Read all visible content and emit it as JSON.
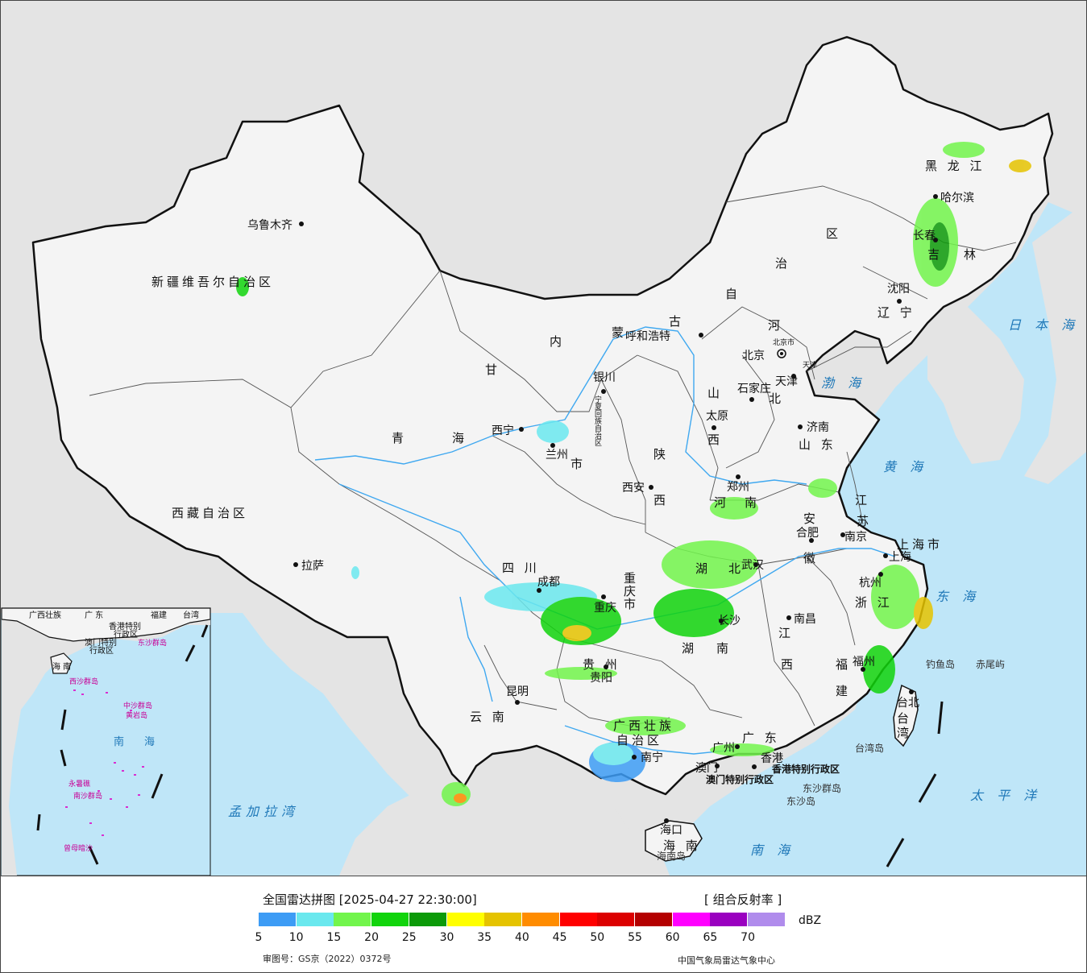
{
  "legend": {
    "title": "全国雷达拼图 [2025-04-27 22:30:00]",
    "product": "[ 组合反射率 ]",
    "unit": "dBZ",
    "approval_number": "审图号：GS京（2022）0372号",
    "agency": "中国气象局雷达气象中心",
    "colors": [
      "#3d9cf5",
      "#6ae8ee",
      "#72f54c",
      "#11d40c",
      "#0c9a09",
      "#ffff00",
      "#e5c300",
      "#ff8c00",
      "#ff0000",
      "#dc0000",
      "#b40000",
      "#ff00ff",
      "#9a00c0",
      "#b08cec"
    ],
    "ticks": [
      "5",
      "10",
      "15",
      "20",
      "25",
      "30",
      "35",
      "40",
      "45",
      "50",
      "55",
      "60",
      "65",
      "70"
    ]
  },
  "map": {
    "colors": {
      "sea": "#bfe6f8",
      "land": "#f4f4f4",
      "outside": "#e4e4e4",
      "border": "#111111",
      "river": "#3fa8f0"
    },
    "labels": {
      "xinjiang": "新疆维吾尔自治区",
      "xizang": "西藏自治区",
      "qinghai_1": "青",
      "qinghai_2": "海",
      "gansu": "甘",
      "sichuan": "四 川",
      "yunnan": "云 南",
      "guizhou": "贵 州",
      "guangxi_1": "广西壮族",
      "guangxi_2": "自治区",
      "guangdong": "广 东",
      "hainan_prov": "海 南",
      "hunan_1": "湖",
      "hunan_2": "南",
      "hubei_1": "湖",
      "hubei_2": "北",
      "henan_1": "河",
      "henan_2": "南",
      "shaanxi_1": "陕",
      "shaanxi_2": "西",
      "shanxi_1": "山",
      "shanxi_2": "西",
      "hebei_1": "河",
      "hebei_2": "北",
      "shandong": "山 东",
      "jiangsu_1": "江",
      "jiangsu_2": "苏",
      "anhui_1": "安",
      "anhui_2": "徽",
      "zhejiang": "浙 江",
      "jiangxi_1": "江",
      "jiangxi_2": "西",
      "fujian_1": "福",
      "fujian_2": "建",
      "taiwan_1": "台",
      "taiwan_2": "湾",
      "chongqing_1": "重",
      "chongqing_2": "庆",
      "chongqing_3": "市",
      "shanghai": "上海市",
      "liaoning": "辽 宁",
      "jilin_1": "吉",
      "jilin_2": "林",
      "heilongjiang": "黑 龙 江",
      "neimenggu_1": "内",
      "neimenggu_2": "蒙",
      "neimenggu_3": "古",
      "neimenggu_4": "自",
      "neimenggu_5": "治",
      "neimenggu_6": "区",
      "ningxia": "宁夏回族自治区",
      "beijing_city": "北京市",
      "tianjin_city": "天津",
      "hk": "香港特别行政区",
      "macao": "澳门特别行政区",
      "tianjin_lbl": "天津",
      "lanzhou_shi": "市"
    },
    "cities": {
      "urumqi": "乌鲁木齐",
      "lhasa": "拉萨",
      "xining": "西宁",
      "lanzhou": "兰州",
      "yinchuan": "银川",
      "hohhot": "呼和浩特",
      "beijing": "北京",
      "tianjin": "天津",
      "shijiazhuang": "石家庄",
      "taiyuan": "太原",
      "jinan": "济南",
      "zhengzhou": "郑州",
      "xian": "西安",
      "chengdu": "成都",
      "chongqing": "重庆",
      "kunming": "昆明",
      "guiyang": "贵阳",
      "nanning": "南宁",
      "guangzhou": "广州",
      "aomen": "澳门",
      "xianggang": "香港",
      "haikou": "海口",
      "changsha": "长沙",
      "wuhan": "武汉",
      "hefei": "合肥",
      "nanjing": "南京",
      "shanghai": "上海",
      "hangzhou": "杭州",
      "nanchang": "南昌",
      "fuzhou": "福州",
      "taibei": "台北",
      "shenyang": "沈阳",
      "changchun": "长春",
      "harbin": "哈尔滨"
    },
    "seas": {
      "bohai": "渤 海",
      "huanghai": "黄 海",
      "donghai": "东 海",
      "nanhai": "南 海",
      "taipingyang": "太 平 洋",
      "ribenhai": "日 本 海",
      "mengjiala": "孟加拉湾"
    },
    "islands": {
      "diaoyu": "钓鱼岛",
      "chiwei": "赤尾屿",
      "taiwan_island": "台湾岛",
      "dongsha_qd": "东沙群岛",
      "dongsha_d": "东沙岛",
      "hainan_island": "海南岛"
    },
    "inset": {
      "guangxi": "广西壮族",
      "guangdong": "广 东",
      "fujian": "福建",
      "taiwan": "台湾",
      "hk": "香港特别",
      "hk2": "行政区",
      "macao": "澳门特别",
      "macao2": "行政区",
      "dongsha": "东沙群岛",
      "hainan": "海 南",
      "xisha": "西沙群岛",
      "zhongsha": "中沙群岛",
      "huangyan": "黄岩岛",
      "nansha": "南沙群岛",
      "nanhai_1": "南",
      "nanhai_2": "海",
      "zengmu": "曾母暗沙",
      "yongshu": "永暑礁"
    }
  }
}
